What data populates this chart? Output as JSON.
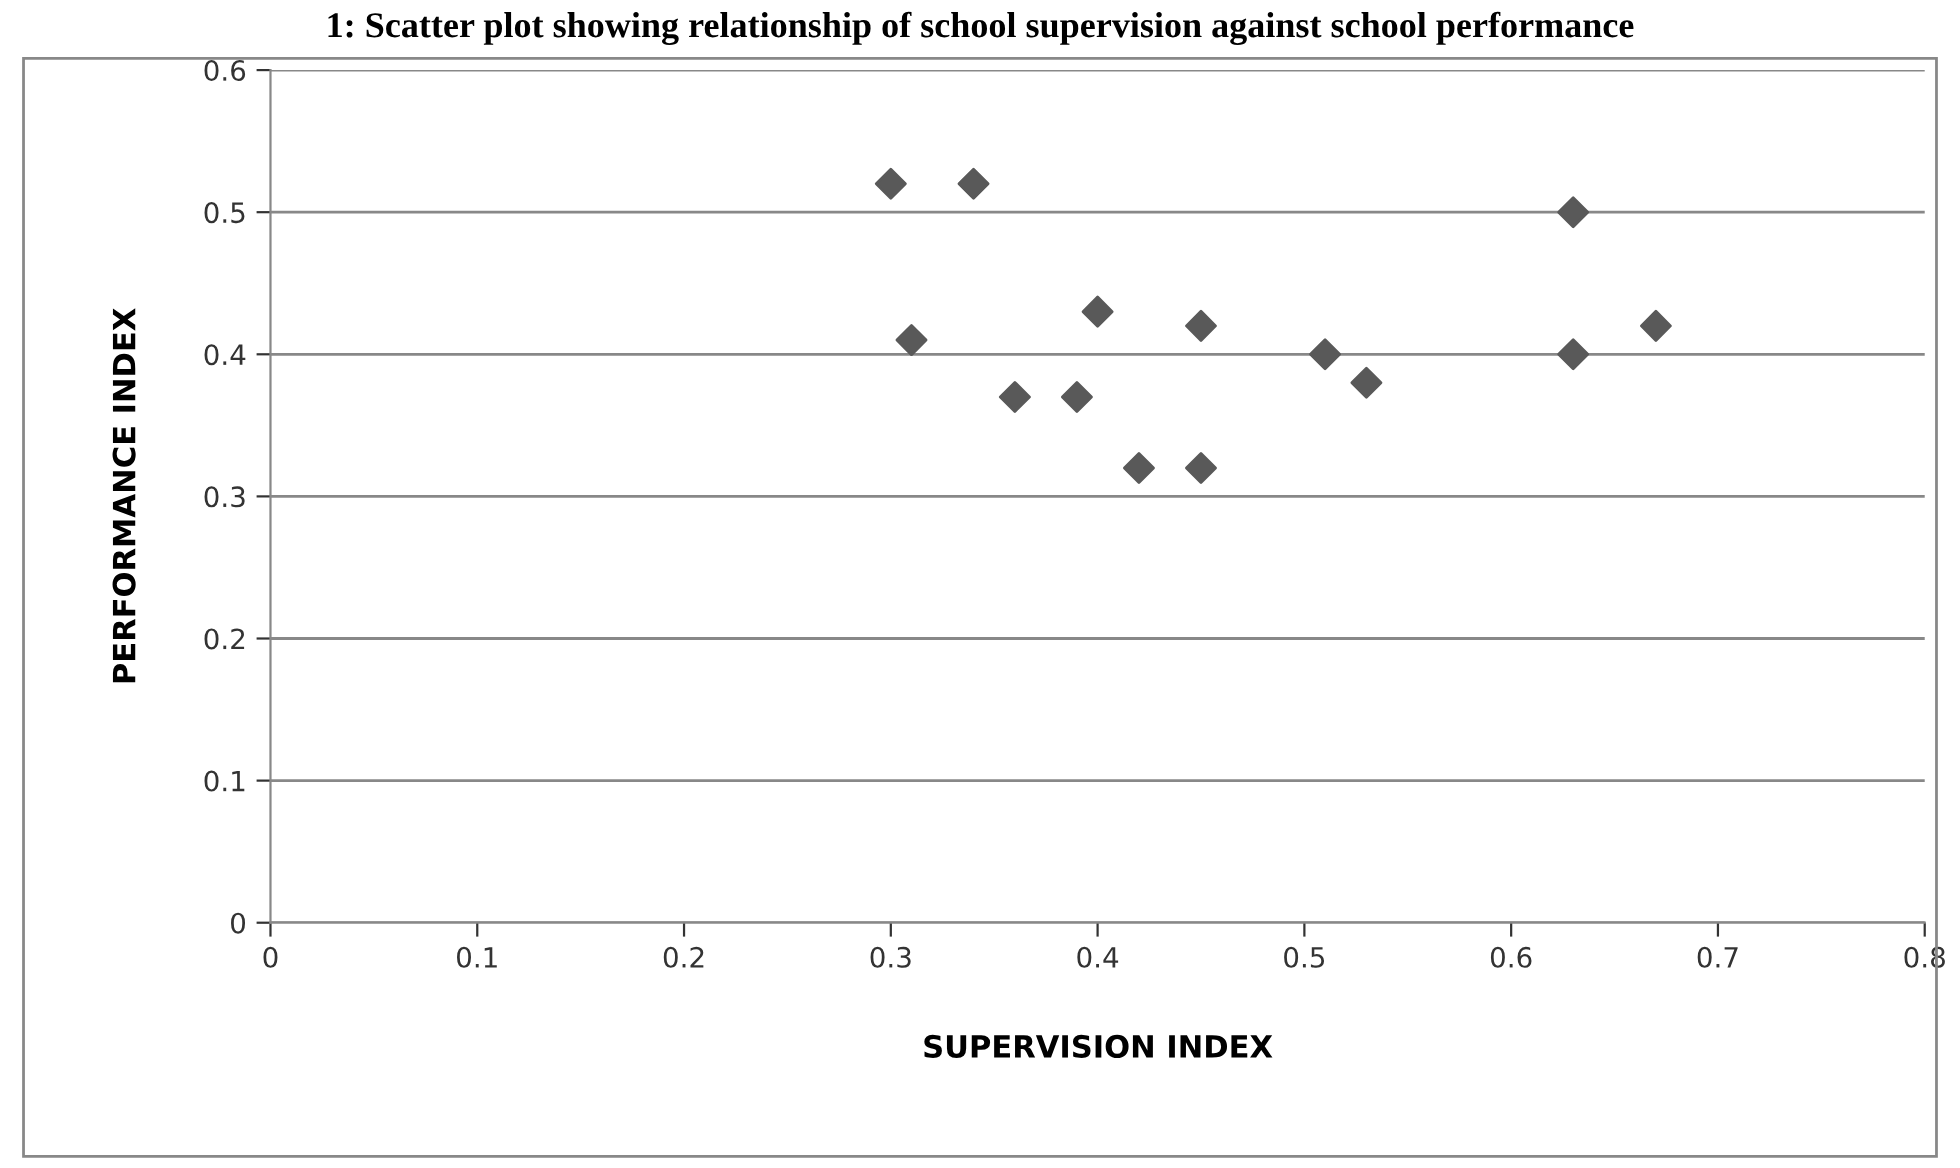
{
  "chart_data": {
    "type": "scatter",
    "title": "1: Scatter plot showing relationship of school supervision against school performance",
    "xlabel": "SUPERVISION INDEX",
    "ylabel": "PERFORMANCE INDEX",
    "x": [
      0.3,
      0.34,
      0.31,
      0.36,
      0.39,
      0.4,
      0.42,
      0.45,
      0.45,
      0.51,
      0.53,
      0.63,
      0.63,
      0.67
    ],
    "series": [
      {
        "color": "#595959",
        "values": [
          0.52,
          0.52,
          0.41,
          0.37,
          0.37,
          0.43,
          0.32,
          0.42,
          0.32,
          0.4,
          0.38,
          0.5,
          0.4,
          0.42
        ]
      }
    ],
    "xlim": [
      0,
      0.8
    ],
    "xticks": [
      {
        "value": 0,
        "label": "0"
      },
      0.1,
      0.2,
      0.3,
      0.4,
      0.5,
      0.6,
      0.7,
      0.8
    ],
    "ylim": [
      0,
      0.6
    ],
    "yticks": [
      {
        "value": 0,
        "label": "0"
      },
      0.1,
      0.2,
      0.3,
      0.4,
      0.5,
      0.6
    ],
    "grid": "y",
    "marker": "diamond",
    "legend": false
  }
}
